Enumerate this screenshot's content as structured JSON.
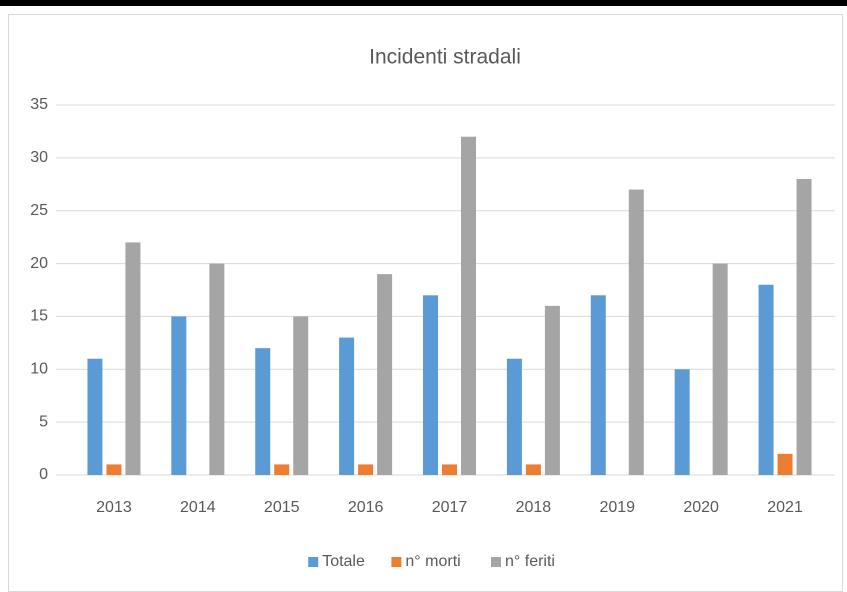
{
  "chart_data": {
    "type": "bar",
    "title": "Incidenti stradali",
    "categories": [
      "2013",
      "2014",
      "2015",
      "2016",
      "2017",
      "2018",
      "2019",
      "2020",
      "2021"
    ],
    "series": [
      {
        "name": "Totale",
        "color": "#5b9bd5",
        "values": [
          11,
          15,
          12,
          13,
          17,
          11,
          17,
          10,
          18
        ]
      },
      {
        "name": "n° morti",
        "color": "#ed7d31",
        "values": [
          1,
          0,
          1,
          1,
          1,
          1,
          0,
          0,
          2
        ]
      },
      {
        "name": "n° feriti",
        "color": "#a5a5a5",
        "values": [
          22,
          20,
          15,
          19,
          32,
          16,
          27,
          20,
          28
        ]
      }
    ],
    "ylim": [
      0,
      35
    ],
    "yticks": [
      0,
      5,
      10,
      15,
      20,
      25,
      30,
      35
    ],
    "grid": true,
    "legend": "bottom"
  }
}
